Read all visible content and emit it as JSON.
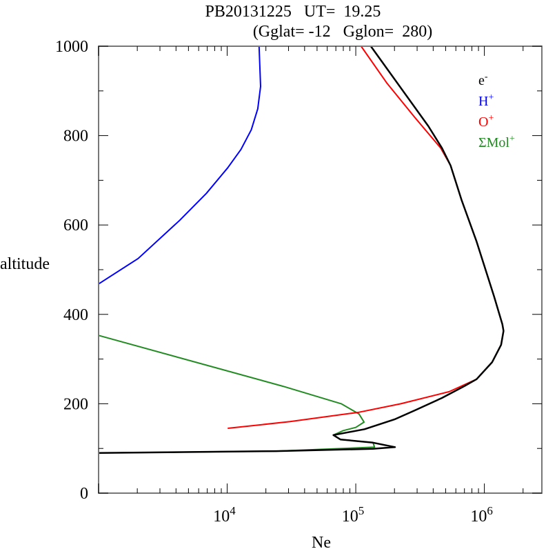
{
  "chart_data": {
    "type": "line",
    "title": "PB20131225   UT=  19.25",
    "subtitle": "(Gglat= -12   Gglon=  280)",
    "xlabel": "Ne",
    "ylabel": "altitude",
    "xscale": "log",
    "xlim": [
      1000,
      2800000
    ],
    "ylim": [
      0,
      1000
    ],
    "yticks": [
      0,
      200,
      400,
      600,
      800,
      1000
    ],
    "xticks": [
      {
        "base": "10",
        "exp": "4",
        "value": 10000
      },
      {
        "base": "10",
        "exp": "5",
        "value": 100000
      },
      {
        "base": "10",
        "exp": "6",
        "value": 1000000
      }
    ],
    "legend_position": "top-right",
    "series": [
      {
        "name": "e",
        "sup": "-",
        "color": "#000000",
        "points": [
          [
            131000,
            1000
          ],
          [
            367000,
            821
          ],
          [
            468000,
            772
          ],
          [
            546000,
            733
          ],
          [
            665000,
            656
          ],
          [
            870000,
            563
          ],
          [
            1190000,
            440
          ],
          [
            1380000,
            378
          ],
          [
            1410000,
            363
          ],
          [
            1350000,
            332
          ],
          [
            1150000,
            293
          ],
          [
            870000,
            255
          ],
          [
            694000,
            239
          ],
          [
            468000,
            213
          ],
          [
            287000,
            185
          ],
          [
            200000,
            165
          ],
          [
            117000,
            143
          ],
          [
            67000,
            130
          ],
          [
            76000,
            120
          ],
          [
            136000,
            113
          ],
          [
            202000,
            103
          ],
          [
            136000,
            99
          ],
          [
            24000,
            94
          ],
          [
            1000,
            90
          ]
        ]
      },
      {
        "name": "H",
        "sup": "+",
        "color": "#0000ff",
        "points": [
          [
            17700,
            1000
          ],
          [
            18200,
            910
          ],
          [
            17300,
            860
          ],
          [
            15400,
            813
          ],
          [
            12800,
            769
          ],
          [
            10100,
            728
          ],
          [
            6900,
            671
          ],
          [
            4260,
            610
          ],
          [
            2030,
            525
          ],
          [
            1000,
            468
          ]
        ]
      },
      {
        "name": "O",
        "sup": "+",
        "color": "#ff0000",
        "points": [
          [
            110000,
            1000
          ],
          [
            174000,
            918
          ],
          [
            287000,
            841
          ],
          [
            458000,
            772
          ],
          [
            546000,
            733
          ],
          [
            665000,
            656
          ],
          [
            870000,
            563
          ],
          [
            1190000,
            440
          ],
          [
            1380000,
            378
          ],
          [
            1410000,
            363
          ],
          [
            1350000,
            332
          ],
          [
            1150000,
            293
          ],
          [
            870000,
            255
          ],
          [
            532000,
            227
          ],
          [
            224000,
            200
          ],
          [
            106000,
            181
          ],
          [
            30800,
            160
          ],
          [
            10100,
            145
          ]
        ]
      },
      {
        "name": "ΣMol",
        "sup": "+",
        "color": "#228b22",
        "points": [
          [
            1000,
            353
          ],
          [
            27200,
            239
          ],
          [
            77100,
            200
          ],
          [
            106000,
            177
          ],
          [
            116000,
            159
          ],
          [
            100000,
            147
          ],
          [
            80000,
            140
          ],
          [
            67000,
            130
          ],
          [
            76000,
            120
          ],
          [
            136000,
            113
          ],
          [
            140000,
            103
          ],
          [
            24000,
            94
          ],
          [
            1000,
            90
          ]
        ]
      }
    ]
  }
}
